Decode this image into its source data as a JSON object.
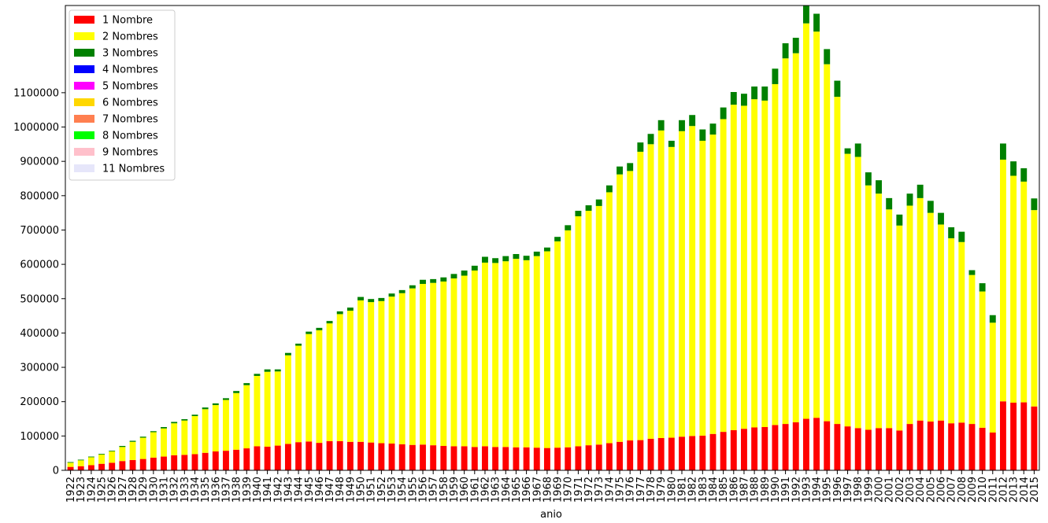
{
  "chart_data": {
    "type": "stacked-bar",
    "x_label": "anio",
    "categories": [
      "1922",
      "1923",
      "1924",
      "1925",
      "1926",
      "1927",
      "1928",
      "1929",
      "1930",
      "1931",
      "1932",
      "1933",
      "1934",
      "1935",
      "1936",
      "1937",
      "1938",
      "1939",
      "1940",
      "1941",
      "1942",
      "1943",
      "1944",
      "1945",
      "1946",
      "1947",
      "1948",
      "1949",
      "1950",
      "1951",
      "1952",
      "1953",
      "1954",
      "1955",
      "1956",
      "1957",
      "1958",
      "1959",
      "1960",
      "1961",
      "1962",
      "1963",
      "1964",
      "1965",
      "1966",
      "1967",
      "1968",
      "1969",
      "1970",
      "1971",
      "1972",
      "1973",
      "1974",
      "1975",
      "1976",
      "1977",
      "1978",
      "1979",
      "1980",
      "1981",
      "1982",
      "1983",
      "1984",
      "1985",
      "1986",
      "1987",
      "1988",
      "1989",
      "1990",
      "1991",
      "1992",
      "1993",
      "1994",
      "1995",
      "1996",
      "1997",
      "1998",
      "1999",
      "2000",
      "2001",
      "2002",
      "2003",
      "2004",
      "2005",
      "2006",
      "2007",
      "2008",
      "2009",
      "2010",
      "2011",
      "2012",
      "2013",
      "2014",
      "2015"
    ],
    "series": [
      {
        "name": "1 Nombre",
        "color": "#ff0000",
        "values": [
          10000,
          12000,
          15000,
          19000,
          22000,
          27000,
          30000,
          33000,
          37000,
          40000,
          44000,
          45000,
          47000,
          51000,
          55000,
          57000,
          60000,
          64000,
          70000,
          69000,
          72000,
          77000,
          82000,
          84000,
          80000,
          85000,
          85000,
          83000,
          83000,
          81000,
          79000,
          78000,
          76000,
          74000,
          75000,
          73000,
          71000,
          70000,
          70000,
          68000,
          70000,
          68000,
          68000,
          67000,
          67000,
          66000,
          65000,
          66000,
          67000,
          70000,
          73000,
          75000,
          79000,
          83000,
          87000,
          88000,
          92000,
          94000,
          95000,
          98000,
          100000,
          101000,
          106000,
          112000,
          117000,
          121000,
          125000,
          126000,
          132000,
          135000,
          140000,
          150000,
          153000,
          143000,
          135000,
          128000,
          123000,
          118000,
          123000,
          123000,
          116000,
          135000,
          145000,
          142000,
          145000,
          137000,
          139000,
          135000,
          124000,
          110000,
          201000,
          197000,
          198000,
          186000
        ]
      },
      {
        "name": "2 Nombres",
        "color": "#ffff00",
        "values": [
          12000,
          17000,
          23000,
          27000,
          33000,
          41000,
          53000,
          62000,
          74000,
          82000,
          93000,
          100000,
          111000,
          127000,
          135000,
          148000,
          165000,
          184000,
          205000,
          218000,
          216000,
          258000,
          281000,
          313000,
          328000,
          343000,
          370000,
          382000,
          412000,
          409000,
          414000,
          428000,
          440000,
          456000,
          468000,
          473000,
          479000,
          489000,
          497000,
          514000,
          535000,
          536000,
          541000,
          549000,
          545000,
          558000,
          573000,
          601000,
          632000,
          670000,
          683000,
          695000,
          731000,
          779000,
          785000,
          840000,
          858000,
          896000,
          847000,
          890000,
          903000,
          859000,
          872000,
          911000,
          948000,
          941000,
          956000,
          951000,
          993000,
          1065000,
          1075000,
          1152000,
          1125000,
          1040000,
          953000,
          794000,
          790000,
          712000,
          683000,
          637000,
          597000,
          636000,
          648000,
          608000,
          571000,
          539000,
          526000,
          434000,
          397000,
          320000,
          704000,
          661000,
          643000,
          572000
        ]
      },
      {
        "name": "3 Nombres",
        "color": "#008000",
        "values": [
          2000,
          2000,
          2000,
          2000,
          2000,
          3000,
          3000,
          3000,
          3000,
          4000,
          4000,
          4000,
          4000,
          5000,
          5000,
          5000,
          6000,
          6000,
          6000,
          7000,
          6000,
          7000,
          6000,
          7000,
          7000,
          7000,
          8000,
          9000,
          10000,
          9000,
          9000,
          9000,
          9000,
          9000,
          12000,
          11000,
          12000,
          13000,
          15000,
          14000,
          17000,
          14000,
          15000,
          14000,
          13000,
          13000,
          11000,
          13000,
          15000,
          16000,
          16000,
          19000,
          20000,
          23000,
          23000,
          27000,
          30000,
          30000,
          18000,
          32000,
          32000,
          33000,
          32000,
          34000,
          37000,
          35000,
          37000,
          41000,
          45000,
          44000,
          45000,
          52000,
          52000,
          44000,
          47000,
          16000,
          39000,
          38000,
          39000,
          33000,
          32000,
          35000,
          39000,
          35000,
          34000,
          32000,
          30000,
          14000,
          24000,
          22000,
          47000,
          42000,
          39000,
          34000
        ]
      },
      {
        "name": "4 Nombres",
        "color": "#0000ff",
        "values": [
          0,
          0,
          0,
          0,
          0,
          0,
          0,
          0,
          0,
          0,
          0,
          0,
          0,
          0,
          0,
          0,
          0,
          0,
          0,
          0,
          0,
          0,
          0,
          0,
          0,
          0,
          0,
          0,
          0,
          0,
          0,
          0,
          0,
          0,
          0,
          0,
          0,
          0,
          0,
          0,
          0,
          0,
          0,
          0,
          0,
          0,
          0,
          0,
          0,
          0,
          0,
          0,
          0,
          0,
          0,
          0,
          0,
          0,
          0,
          0,
          0,
          0,
          0,
          0,
          0,
          0,
          0,
          0,
          0,
          0,
          0,
          0,
          0,
          0,
          0,
          0,
          0,
          0,
          0,
          0,
          0,
          0,
          0,
          0,
          0,
          0,
          0,
          0,
          0,
          0,
          0,
          0,
          0,
          0
        ]
      },
      {
        "name": "5 Nombres",
        "color": "#ff00ff",
        "values": [
          0,
          0,
          0,
          0,
          0,
          0,
          0,
          0,
          0,
          0,
          0,
          0,
          0,
          0,
          0,
          0,
          0,
          0,
          0,
          0,
          0,
          0,
          0,
          0,
          0,
          0,
          0,
          0,
          0,
          0,
          0,
          0,
          0,
          0,
          0,
          0,
          0,
          0,
          0,
          0,
          0,
          0,
          0,
          0,
          0,
          0,
          0,
          0,
          0,
          0,
          0,
          0,
          0,
          0,
          0,
          0,
          0,
          0,
          0,
          0,
          0,
          0,
          0,
          0,
          0,
          0,
          0,
          0,
          0,
          0,
          0,
          0,
          0,
          0,
          0,
          0,
          0,
          0,
          0,
          0,
          0,
          0,
          0,
          0,
          0,
          0,
          0,
          0,
          0,
          0,
          0,
          0,
          0,
          0
        ]
      },
      {
        "name": "6 Nombres",
        "color": "#ffd700",
        "values": [
          0,
          0,
          0,
          0,
          0,
          0,
          0,
          0,
          0,
          0,
          0,
          0,
          0,
          0,
          0,
          0,
          0,
          0,
          0,
          0,
          0,
          0,
          0,
          0,
          0,
          0,
          0,
          0,
          0,
          0,
          0,
          0,
          0,
          0,
          0,
          0,
          0,
          0,
          0,
          0,
          0,
          0,
          0,
          0,
          0,
          0,
          0,
          0,
          0,
          0,
          0,
          0,
          0,
          0,
          0,
          0,
          0,
          0,
          0,
          0,
          0,
          0,
          0,
          0,
          0,
          0,
          0,
          0,
          0,
          0,
          0,
          0,
          0,
          0,
          0,
          0,
          0,
          0,
          0,
          0,
          0,
          0,
          0,
          0,
          0,
          0,
          0,
          0,
          0,
          0,
          0,
          0,
          0,
          0
        ]
      },
      {
        "name": "7 Nombres",
        "color": "#ff7f50",
        "values": [
          0,
          0,
          0,
          0,
          0,
          0,
          0,
          0,
          0,
          0,
          0,
          0,
          0,
          0,
          0,
          0,
          0,
          0,
          0,
          0,
          0,
          0,
          0,
          0,
          0,
          0,
          0,
          0,
          0,
          0,
          0,
          0,
          0,
          0,
          0,
          0,
          0,
          0,
          0,
          0,
          0,
          0,
          0,
          0,
          0,
          0,
          0,
          0,
          0,
          0,
          0,
          0,
          0,
          0,
          0,
          0,
          0,
          0,
          0,
          0,
          0,
          0,
          0,
          0,
          0,
          0,
          0,
          0,
          0,
          0,
          0,
          0,
          0,
          0,
          0,
          0,
          0,
          0,
          0,
          0,
          0,
          0,
          0,
          0,
          0,
          0,
          0,
          0,
          0,
          0,
          0,
          0,
          0,
          0
        ]
      },
      {
        "name": "8 Nombres",
        "color": "#00ff00",
        "values": [
          0,
          0,
          0,
          0,
          0,
          0,
          0,
          0,
          0,
          0,
          0,
          0,
          0,
          0,
          0,
          0,
          0,
          0,
          0,
          0,
          0,
          0,
          0,
          0,
          0,
          0,
          0,
          0,
          0,
          0,
          0,
          0,
          0,
          0,
          0,
          0,
          0,
          0,
          0,
          0,
          0,
          0,
          0,
          0,
          0,
          0,
          0,
          0,
          0,
          0,
          0,
          0,
          0,
          0,
          0,
          0,
          0,
          0,
          0,
          0,
          0,
          0,
          0,
          0,
          0,
          0,
          0,
          0,
          0,
          0,
          0,
          0,
          0,
          0,
          0,
          0,
          0,
          0,
          0,
          0,
          0,
          0,
          0,
          0,
          0,
          0,
          0,
          0,
          0,
          0,
          0,
          0,
          0,
          0
        ]
      },
      {
        "name": "9 Nombres",
        "color": "#ffc0cb",
        "values": [
          0,
          0,
          0,
          0,
          0,
          0,
          0,
          0,
          0,
          0,
          0,
          0,
          0,
          0,
          0,
          0,
          0,
          0,
          0,
          0,
          0,
          0,
          0,
          0,
          0,
          0,
          0,
          0,
          0,
          0,
          0,
          0,
          0,
          0,
          0,
          0,
          0,
          0,
          0,
          0,
          0,
          0,
          0,
          0,
          0,
          0,
          0,
          0,
          0,
          0,
          0,
          0,
          0,
          0,
          0,
          0,
          0,
          0,
          0,
          0,
          0,
          0,
          0,
          0,
          0,
          0,
          0,
          0,
          0,
          0,
          0,
          0,
          0,
          0,
          0,
          0,
          0,
          0,
          0,
          0,
          0,
          0,
          0,
          0,
          0,
          0,
          0,
          0,
          0,
          0,
          0,
          0,
          0,
          0
        ]
      },
      {
        "name": "11 Nombres",
        "color": "#e6e6fa",
        "values": [
          0,
          0,
          0,
          0,
          0,
          0,
          0,
          0,
          0,
          0,
          0,
          0,
          0,
          0,
          0,
          0,
          0,
          0,
          0,
          0,
          0,
          0,
          0,
          0,
          0,
          0,
          0,
          0,
          0,
          0,
          0,
          0,
          0,
          0,
          0,
          0,
          0,
          0,
          0,
          0,
          0,
          0,
          0,
          0,
          0,
          0,
          0,
          0,
          0,
          0,
          0,
          0,
          0,
          0,
          0,
          0,
          0,
          0,
          0,
          0,
          0,
          0,
          0,
          0,
          0,
          0,
          0,
          0,
          0,
          0,
          0,
          0,
          0,
          0,
          0,
          0,
          0,
          0,
          0,
          0,
          0,
          0,
          0,
          0,
          0,
          0,
          0,
          0,
          0,
          0,
          0,
          0,
          0,
          0
        ]
      }
    ],
    "ylim": [
      0,
      1354000
    ],
    "yticks": [
      0,
      100000,
      200000,
      300000,
      400000,
      500000,
      600000,
      700000,
      800000,
      900000,
      1000000,
      1100000
    ],
    "legend": "upper left"
  }
}
